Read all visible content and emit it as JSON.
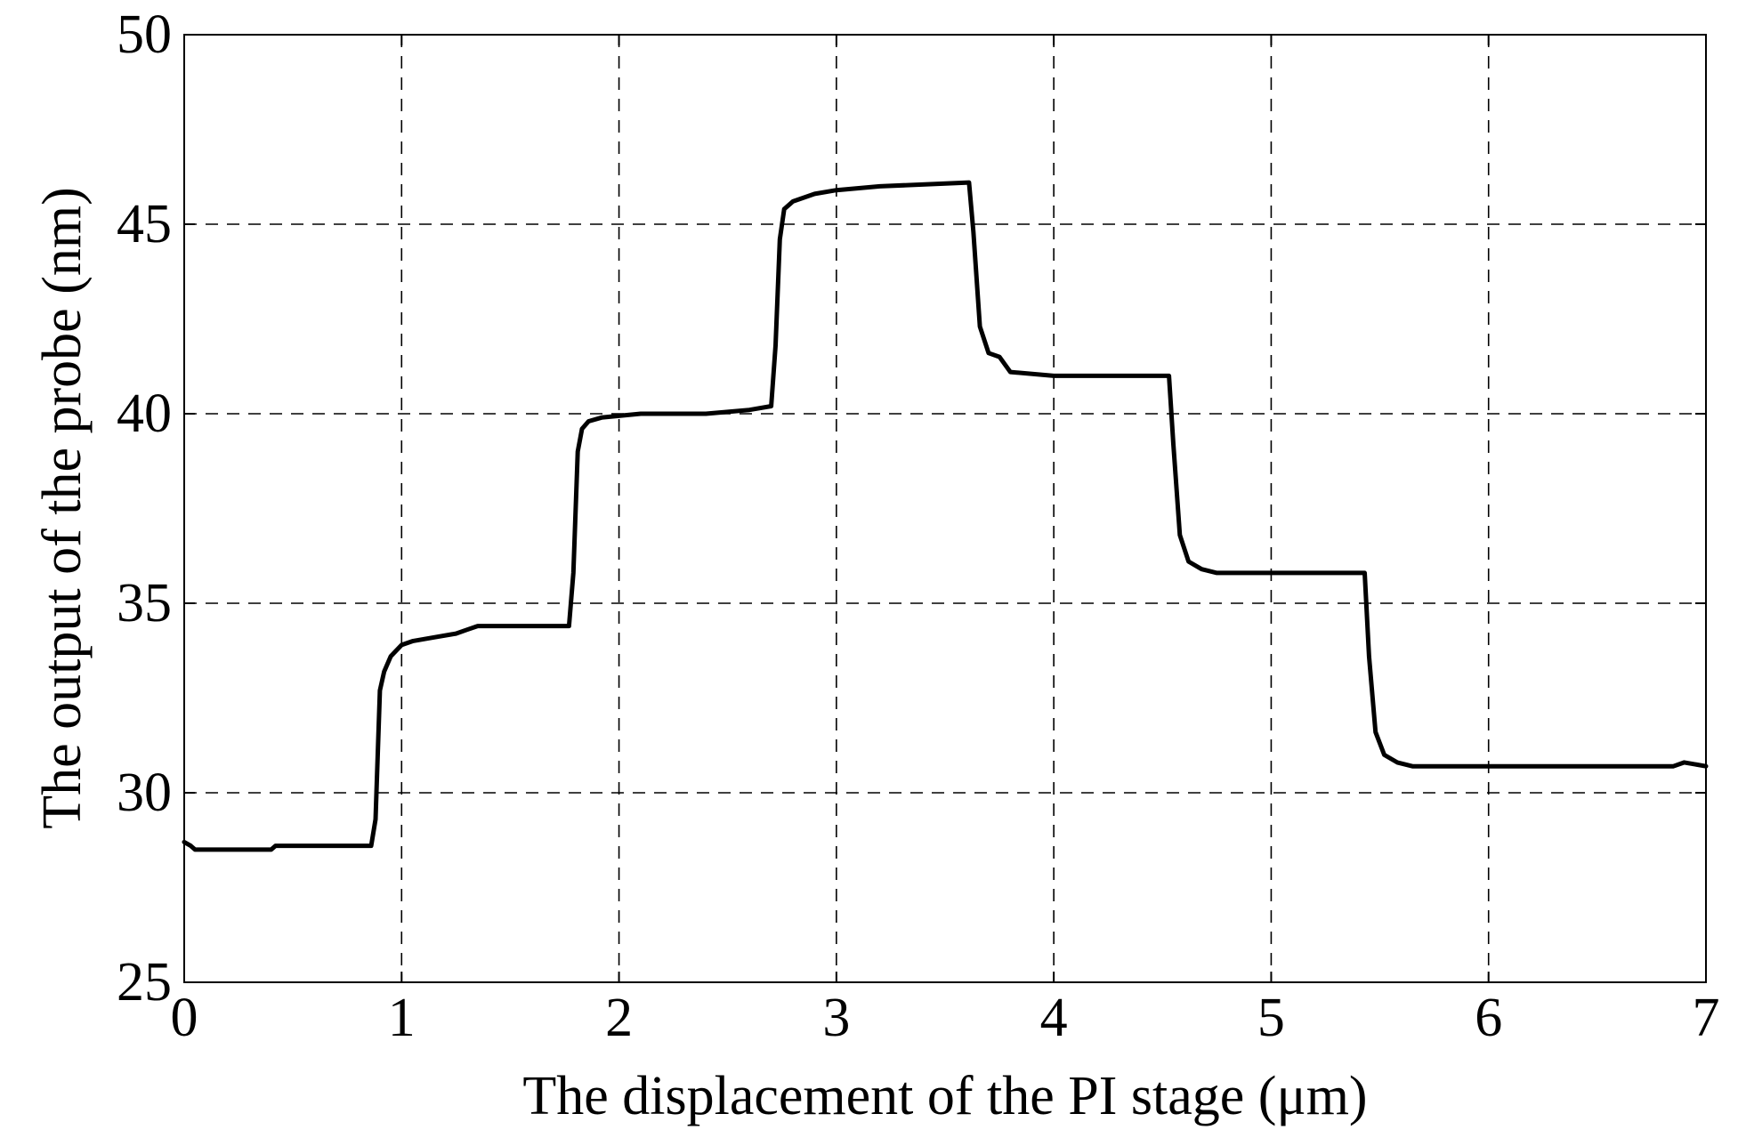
{
  "chart_data": {
    "type": "line",
    "xlabel": "The displacement of the PI stage (μm)",
    "ylabel": "The output of the probe (nm)",
    "xlim": [
      0,
      7
    ],
    "ylim": [
      25,
      50
    ],
    "x_ticks": [
      0,
      1,
      2,
      3,
      4,
      5,
      6,
      7
    ],
    "y_ticks": [
      25,
      30,
      35,
      40,
      45,
      50
    ],
    "x_tick_labels": [
      "0",
      "1",
      "2",
      "3",
      "4",
      "5",
      "6",
      "7"
    ],
    "y_tick_labels": [
      "25",
      "30",
      "35",
      "40",
      "45",
      "50"
    ],
    "grid": true,
    "series": [
      {
        "color": "#000000",
        "x": [
          0.0,
          0.03,
          0.05,
          0.4,
          0.42,
          0.86,
          0.88,
          0.9,
          0.92,
          0.95,
          1.0,
          1.05,
          1.15,
          1.25,
          1.3,
          1.35,
          1.4,
          1.77,
          1.79,
          1.81,
          1.83,
          1.86,
          1.92,
          2.1,
          2.4,
          2.6,
          2.7,
          2.72,
          2.74,
          2.76,
          2.8,
          2.9,
          3.0,
          3.2,
          3.61,
          3.63,
          3.66,
          3.7,
          3.75,
          3.8,
          4.0,
          4.53,
          4.55,
          4.58,
          4.62,
          4.68,
          4.75,
          5.0,
          5.43,
          5.45,
          5.48,
          5.52,
          5.58,
          5.65,
          6.0,
          6.5,
          6.85,
          6.9,
          7.0
        ],
        "y": [
          28.7,
          28.6,
          28.5,
          28.5,
          28.6,
          28.6,
          29.3,
          32.7,
          33.2,
          33.6,
          33.9,
          34.0,
          34.1,
          34.2,
          34.3,
          34.4,
          34.4,
          34.4,
          35.8,
          39.0,
          39.6,
          39.8,
          39.9,
          40.0,
          40.0,
          40.1,
          40.2,
          41.8,
          44.6,
          45.4,
          45.6,
          45.8,
          45.9,
          46.0,
          46.1,
          44.8,
          42.3,
          41.6,
          41.5,
          41.1,
          41.0,
          41.0,
          39.2,
          36.8,
          36.1,
          35.9,
          35.8,
          35.8,
          35.8,
          33.6,
          31.6,
          31.0,
          30.8,
          30.7,
          30.7,
          30.7,
          30.7,
          30.8,
          30.7
        ]
      }
    ]
  }
}
